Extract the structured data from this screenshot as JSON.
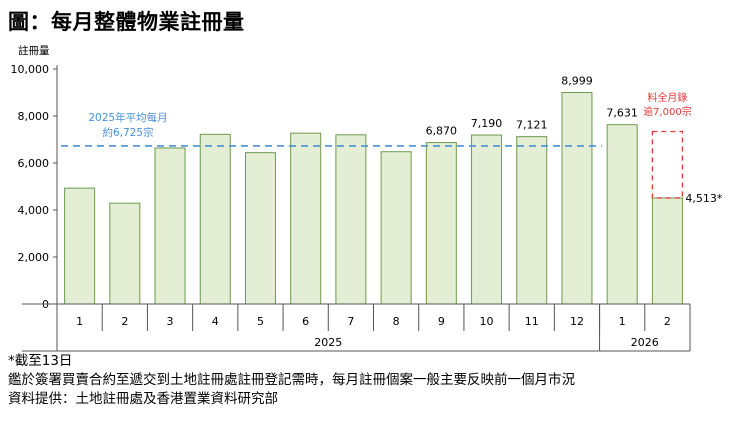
{
  "title": "圖：每月整體物業註冊量",
  "chart_data": {
    "type": "bar",
    "ylabel": "註冊量",
    "ylim": [
      0,
      10000
    ],
    "yticks": [
      "0",
      "2,000",
      "4,000",
      "6,000",
      "8,000",
      "10,000"
    ],
    "categories": [
      "1",
      "2",
      "3",
      "4",
      "5",
      "6",
      "7",
      "8",
      "9",
      "10",
      "11",
      "12",
      "1",
      "2"
    ],
    "years": [
      {
        "label": "2025",
        "months": 12
      },
      {
        "label": "2026",
        "months": 2
      }
    ],
    "values": [
      4930,
      4290,
      6640,
      7220,
      6440,
      7270,
      7200,
      6480,
      6870,
      7190,
      7121,
      8999,
      7631,
      4513
    ],
    "data_labels": [
      "",
      "",
      "",
      "",
      "",
      "",
      "",
      "",
      "6,870",
      "7,190",
      "7,121",
      "8,999",
      "7,631",
      "4,513*"
    ],
    "bar_color": "#e3eed4",
    "bar_stroke": "#6d9a4f",
    "average": {
      "value": 6725,
      "label_line1": "2025年平均每月",
      "label_line2": "約6,725宗",
      "color": "#4a90d9"
    },
    "projection": {
      "value": 7000,
      "label_line1": "料全月錄",
      "label_line2": "逾7,000宗",
      "color": "#e53935"
    },
    "grid": false
  },
  "notes": [
    "*截至13日",
    "鑑於簽署買賣合約至遞交到土地註冊處註冊登記需時，每月註冊個案一般主要反映前一個月市況",
    "資料提供：土地註冊處及香港置業資料研究部"
  ]
}
